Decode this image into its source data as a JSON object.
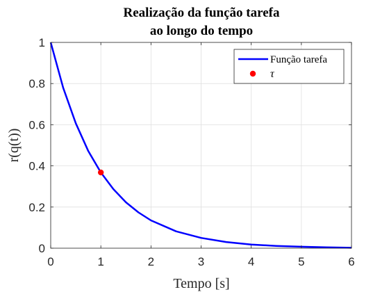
{
  "chart_data": {
    "type": "line",
    "title_lines": [
      "Realização da função tarefa",
      "ao longo do tempo"
    ],
    "xlabel": "Tempo [s]",
    "ylabel": "r(q(t))",
    "xlim": [
      0,
      6
    ],
    "ylim": [
      0,
      1
    ],
    "xticks": [
      0,
      1,
      2,
      3,
      4,
      5,
      6
    ],
    "xtick_labels": [
      "0",
      "1",
      "2",
      "3",
      "4",
      "5",
      "6"
    ],
    "yticks": [
      0,
      0.2,
      0.4,
      0.6,
      0.8,
      1
    ],
    "ytick_labels": [
      "0",
      "0.2",
      "0.4",
      "0.6",
      "0.8",
      "1"
    ],
    "grid": true,
    "legend_position": "top-right",
    "series": [
      {
        "name": "Função tarefa",
        "style": "line",
        "color": "#0000ff",
        "x": [
          0,
          0.25,
          0.5,
          0.75,
          1,
          1.25,
          1.5,
          1.75,
          2,
          2.5,
          3,
          3.5,
          4,
          4.5,
          5,
          5.5,
          6
        ],
        "y": [
          1,
          0.779,
          0.607,
          0.472,
          0.368,
          0.287,
          0.223,
          0.174,
          0.135,
          0.082,
          0.05,
          0.03,
          0.018,
          0.011,
          0.007,
          0.004,
          0.002
        ]
      },
      {
        "name": "τ",
        "style": "marker",
        "color": "#ff0000",
        "x": [
          1
        ],
        "y": [
          0.368
        ]
      }
    ]
  }
}
